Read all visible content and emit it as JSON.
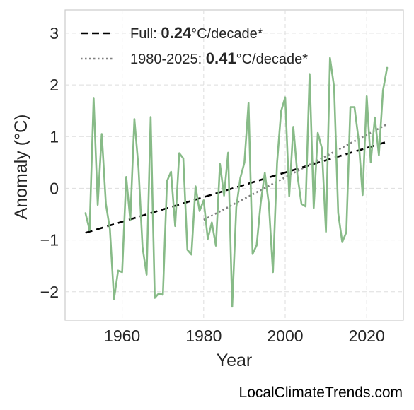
{
  "chart_data": {
    "type": "line",
    "xlabel": "Year",
    "ylabel": "Anomaly (°C)",
    "xlim": [
      1946,
      2029
    ],
    "ylim": [
      -2.55,
      3.45
    ],
    "xticks": [
      1960,
      1980,
      2000,
      2020
    ],
    "xtick_labels": [
      "1960",
      "1980",
      "2000",
      "2020"
    ],
    "yticks": [
      -2,
      -1,
      0,
      1,
      2,
      3
    ],
    "ytick_labels": [
      "−2",
      "−1",
      "0",
      "1",
      "2",
      "3"
    ],
    "grid": true,
    "legend_position": "top-left",
    "series": [
      {
        "color": "#88bb88",
        "x": [
          1951,
          1952,
          1953,
          1954,
          1955,
          1956,
          1957,
          1958,
          1959,
          1960,
          1961,
          1962,
          1963,
          1964,
          1965,
          1966,
          1967,
          1968,
          1969,
          1970,
          1971,
          1972,
          1973,
          1974,
          1975,
          1976,
          1977,
          1978,
          1979,
          1980,
          1981,
          1982,
          1983,
          1984,
          1985,
          1986,
          1987,
          1988,
          1989,
          1990,
          1991,
          1992,
          1993,
          1994,
          1995,
          1996,
          1997,
          1998,
          1999,
          2000,
          2001,
          2002,
          2003,
          2004,
          2005,
          2006,
          2007,
          2008,
          2009,
          2010,
          2011,
          2012,
          2013,
          2014,
          2015,
          2016,
          2017,
          2018,
          2019,
          2020,
          2021,
          2022,
          2023,
          2024,
          2025
        ],
        "y": [
          -0.48,
          -0.81,
          1.75,
          -0.32,
          1.05,
          -0.3,
          -0.79,
          -2.14,
          -1.59,
          -1.62,
          0.22,
          -0.62,
          1.34,
          0.4,
          -1.14,
          -1.67,
          1.38,
          -2.12,
          -2.03,
          -2.06,
          0.14,
          0.32,
          -0.73,
          0.68,
          0.58,
          -1.19,
          -1.28,
          0.04,
          -0.44,
          -0.23,
          -0.98,
          -0.66,
          -1.11,
          0.47,
          -0.14,
          0.69,
          -2.29,
          -0.37,
          0.2,
          0.5,
          1.65,
          -1.27,
          -1.1,
          -0.28,
          0.3,
          -0.32,
          -1.62,
          0.49,
          1.49,
          1.76,
          -0.15,
          1.19,
          0.25,
          -0.3,
          -0.35,
          2.21,
          -0.38,
          1.07,
          0.78,
          -0.84,
          2.52,
          1.96,
          -0.48,
          -1.04,
          -0.85,
          1.57,
          1.57,
          0.94,
          -0.13,
          1.78,
          0.5,
          1.37,
          0.64,
          1.89,
          2.33
        ]
      }
    ],
    "trends": [
      {
        "name": "Full",
        "rate": "0.24",
        "suffix": "°C/decade*",
        "style": "dashed",
        "color": "#000000",
        "x": [
          1951,
          2025
        ],
        "y": [
          -0.86,
          0.9
        ]
      },
      {
        "name": "1980-2025",
        "rate": "0.41",
        "suffix": "°C/decade*",
        "style": "dotted",
        "color": "#808080",
        "x": [
          1980,
          2025
        ],
        "y": [
          -0.61,
          1.24
        ]
      }
    ]
  },
  "watermark": "LocalClimateTrends.com"
}
